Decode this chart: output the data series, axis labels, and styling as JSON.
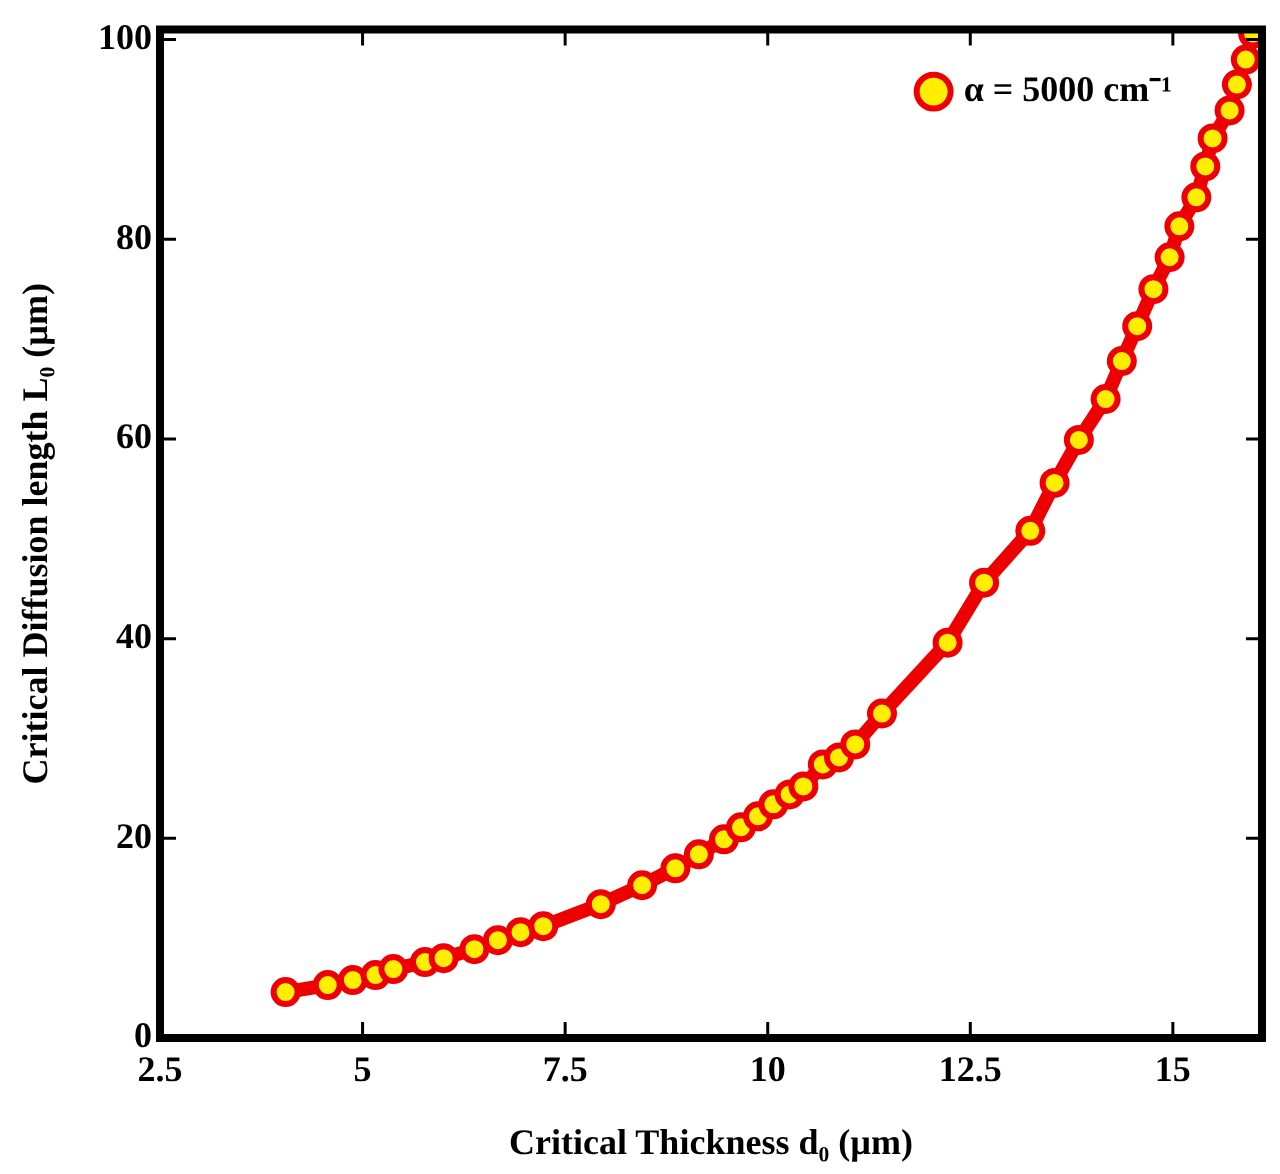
{
  "chart_data": {
    "type": "line",
    "xlabel": "Critical Thickness d₀ (µm)",
    "ylabel": "Critical Diffusion length L₀ (µm)",
    "xlim": [
      2.5,
      16.1
    ],
    "ylim": [
      0,
      101
    ],
    "xticks": [
      2.5,
      5,
      7.5,
      10,
      12.5,
      15
    ],
    "yticks": [
      0,
      20,
      40,
      60,
      80,
      100
    ],
    "grid": false,
    "legend": "top right",
    "marker": "circle",
    "line_style": "solid",
    "series": [
      {
        "name": "α = 5000 cm⁻¹",
        "color": "#ee0000",
        "x": [
          4.05,
          4.57,
          4.88,
          5.16,
          5.38,
          5.77,
          6.0,
          6.38,
          6.67,
          6.95,
          7.23,
          7.94,
          8.45,
          8.86,
          9.15,
          9.46,
          9.67,
          9.88,
          10.07,
          10.27,
          10.44,
          10.68,
          10.88,
          11.08,
          11.41,
          12.22,
          12.67,
          13.24,
          13.54,
          13.84,
          14.17,
          14.37,
          14.56,
          14.76,
          14.96,
          15.08,
          15.29,
          15.4,
          15.49,
          15.7,
          15.79,
          15.9,
          15.99
        ],
        "values": [
          4.6,
          5.3,
          5.8,
          6.3,
          6.9,
          7.6,
          8.0,
          8.9,
          9.8,
          10.6,
          11.2,
          13.4,
          15.3,
          17.0,
          18.4,
          19.9,
          21.1,
          22.2,
          23.4,
          24.4,
          25.2,
          27.4,
          28.1,
          29.4,
          32.5,
          39.6,
          45.6,
          50.8,
          55.6,
          59.9,
          64.0,
          67.8,
          71.3,
          75.0,
          78.2,
          81.3,
          84.2,
          87.3,
          90.1,
          92.9,
          95.5,
          98.0,
          100.6
        ]
      }
    ]
  }
}
